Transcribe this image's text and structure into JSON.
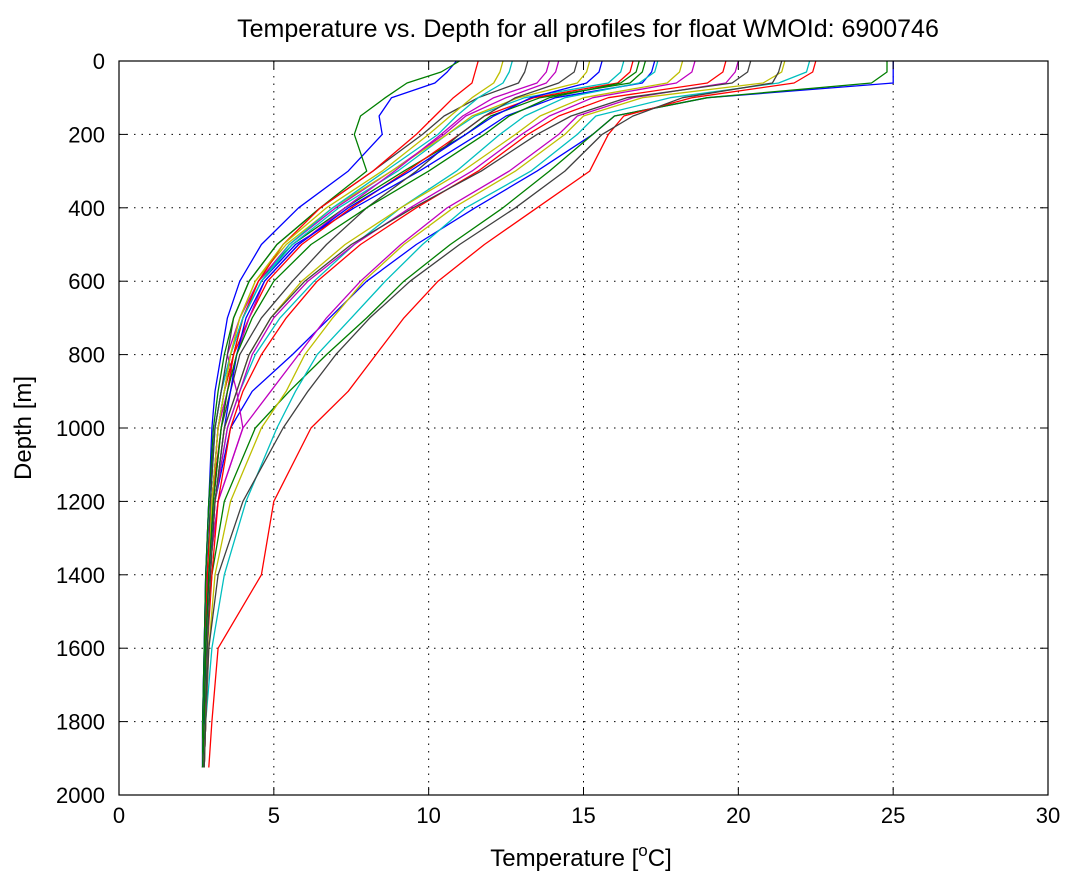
{
  "chart_data": {
    "type": "line",
    "title": "Temperature vs. Depth for all profiles for float WMOId: 6900746",
    "xlabel": "Temperature [°C]",
    "xlabel_main": "Temperature [",
    "xlabel_sup": "o",
    "xlabel_end": "C]",
    "ylabel": "Depth [m]",
    "xlim": [
      0,
      30
    ],
    "ylim": [
      0,
      2000
    ],
    "y_reversed": true,
    "grid": true,
    "xticks": [
      0,
      5,
      10,
      15,
      20,
      25,
      30
    ],
    "yticks": [
      0,
      200,
      400,
      600,
      800,
      1000,
      1200,
      1400,
      1600,
      1800,
      2000
    ],
    "depth_levels": [
      0,
      30,
      60,
      100,
      150,
      200,
      300,
      400,
      500,
      600,
      700,
      800,
      900,
      1000,
      1200,
      1400,
      1600,
      1800,
      1925
    ],
    "series": [
      {
        "color": "#0000ff",
        "depth": [
          0,
          30,
          60,
          100,
          150,
          200,
          300,
          400,
          500,
          600,
          700,
          800,
          900,
          1000,
          1200,
          1400,
          1600,
          1800,
          1925
        ],
        "temp": [
          25,
          25,
          25,
          19,
          16,
          15.3,
          13.5,
          11.5,
          9.6,
          8,
          6.8,
          5.6,
          4.3,
          3.6,
          3.1,
          2.9,
          2.8,
          2.7,
          2.7
        ]
      },
      {
        "color": "#007f00",
        "depth": [
          0,
          30,
          60,
          100,
          150,
          200,
          300,
          400,
          500,
          600,
          700,
          800,
          900,
          1000,
          1200,
          1400,
          1600,
          1800,
          1925
        ],
        "temp": [
          24.8,
          24.8,
          24.3,
          19,
          16,
          15.3,
          13.9,
          12.4,
          10.7,
          9.2,
          8,
          6.7,
          5.5,
          4.4,
          3.4,
          3,
          2.8,
          2.75,
          2.7
        ]
      },
      {
        "color": "#ff0000",
        "depth": [
          0,
          30,
          60,
          100,
          150,
          200,
          300,
          400,
          500,
          600,
          700,
          800,
          900,
          1000,
          1200,
          1400,
          1600,
          1800,
          1925
        ],
        "temp": [
          22.5,
          22.4,
          21.8,
          18.5,
          16.3,
          15.8,
          15.2,
          13.5,
          11.8,
          10.3,
          9.2,
          8.3,
          7.4,
          6.2,
          5,
          4.6,
          3.2,
          3,
          2.9
        ]
      },
      {
        "color": "#00bfbf",
        "depth": [
          0,
          30,
          60,
          100,
          150,
          200,
          300,
          400,
          500,
          600,
          700,
          800,
          900,
          1000,
          1200,
          1400,
          1600,
          1800,
          1925
        ],
        "temp": [
          22.3,
          22.2,
          21.3,
          17.8,
          15.4,
          14.8,
          13.3,
          11.2,
          9.8,
          8.6,
          7.5,
          6.4,
          5.7,
          5.1,
          4.1,
          3.4,
          3,
          2.8,
          2.75
        ]
      },
      {
        "color": "#bf00bf",
        "depth": [
          0,
          30,
          60,
          100,
          150,
          200,
          300,
          400,
          500,
          600,
          700,
          800,
          900,
          1000,
          1200,
          1400,
          1600,
          1800,
          1925
        ],
        "temp": [
          20,
          19.9,
          19.6,
          16.6,
          14.8,
          14.2,
          12.6,
          10.6,
          9.1,
          7.8,
          6.7,
          5.8,
          4.9,
          4,
          3.2,
          2.9,
          2.8,
          2.7,
          2.7
        ]
      },
      {
        "color": "#bfbf00",
        "depth": [
          0,
          30,
          60,
          100,
          150,
          200,
          300,
          400,
          500,
          600,
          700,
          800,
          900,
          1000,
          1200,
          1400,
          1600,
          1800,
          1925
        ],
        "temp": [
          21.5,
          21.4,
          20.8,
          16.9,
          15,
          14.4,
          12.8,
          10.8,
          9.2,
          7.9,
          6.9,
          6,
          5.4,
          4.6,
          3.6,
          3.1,
          2.9,
          2.8,
          2.75
        ]
      },
      {
        "color": "#404040",
        "depth": [
          0,
          30,
          60,
          100,
          150,
          200,
          300,
          400,
          500,
          600,
          700,
          800,
          900,
          1000,
          1200,
          1400,
          1600,
          1800,
          1925
        ],
        "temp": [
          21.4,
          21.3,
          21.1,
          18.2,
          16.6,
          15.6,
          14.4,
          12.8,
          11,
          9.4,
          8.1,
          7,
          6.1,
          5.3,
          4,
          3.2,
          2.9,
          2.8,
          2.75
        ]
      },
      {
        "color": "#0000ff",
        "depth": [
          0,
          30,
          60,
          100,
          150,
          200,
          300,
          400,
          500,
          600,
          700,
          800,
          900,
          1000,
          1200,
          1400,
          1600,
          1800,
          1925
        ],
        "temp": [
          17.3,
          17.2,
          16.9,
          14.1,
          12.5,
          11.6,
          9.7,
          7.6,
          5.7,
          4.6,
          4,
          3.6,
          3.3,
          3.1,
          2.9,
          2.8,
          2.75,
          2.7,
          2.7
        ]
      },
      {
        "color": "#007f00",
        "depth": [
          0,
          30,
          60,
          100,
          150,
          200,
          300,
          400,
          500,
          600,
          700,
          800,
          900,
          1000,
          1200,
          1400,
          1600,
          1800,
          1925
        ],
        "temp": [
          17,
          16.9,
          16.5,
          13.6,
          12,
          11.2,
          9.2,
          7.3,
          5.6,
          4.5,
          4,
          3.7,
          3.4,
          3.2,
          3,
          2.85,
          2.8,
          2.75,
          2.7
        ]
      },
      {
        "color": "#ff0000",
        "depth": [
          0,
          30,
          60,
          100,
          150,
          200,
          300,
          400,
          500,
          600,
          700,
          800,
          900,
          1000,
          1200,
          1400,
          1600,
          1800,
          1925
        ],
        "temp": [
          16.6,
          16.5,
          16.1,
          13.4,
          11.8,
          11,
          9.3,
          7.5,
          5.9,
          4.8,
          4.2,
          3.7,
          3.4,
          3.2,
          3,
          2.9,
          2.8,
          2.75,
          2.7
        ]
      },
      {
        "color": "#00bfbf",
        "depth": [
          0,
          30,
          60,
          100,
          150,
          200,
          300,
          400,
          500,
          600,
          700,
          800,
          900,
          1000,
          1200,
          1400,
          1600,
          1800,
          1925
        ],
        "temp": [
          16.3,
          16.2,
          15.8,
          13.1,
          11.5,
          10.6,
          9,
          7.1,
          5.6,
          4.6,
          4,
          3.6,
          3.3,
          3.1,
          2.95,
          2.85,
          2.8,
          2.75,
          2.7
        ]
      },
      {
        "color": "#bf00bf",
        "depth": [
          0,
          30,
          60,
          100,
          150,
          200,
          300,
          400,
          500,
          600,
          700,
          800,
          900,
          1000,
          1200,
          1400,
          1600,
          1800,
          1925
        ],
        "temp": [
          14.2,
          14.1,
          13.8,
          12.5,
          11.2,
          10.5,
          8.8,
          7,
          5.5,
          4.5,
          3.9,
          3.5,
          3.8,
          4,
          3.2,
          2.9,
          2.8,
          2.75,
          2.7
        ]
      },
      {
        "color": "#bfbf00",
        "depth": [
          0,
          30,
          60,
          100,
          150,
          200,
          300,
          400,
          500,
          600,
          700,
          800,
          900,
          1000,
          1200,
          1400,
          1600,
          1800,
          1925
        ],
        "temp": [
          15.2,
          15.1,
          14.8,
          12.9,
          11.4,
          10.6,
          8.8,
          6.9,
          5.4,
          4.4,
          3.9,
          3.6,
          3.4,
          3.2,
          3,
          2.9,
          2.8,
          2.75,
          2.7
        ]
      },
      {
        "color": "#404040",
        "depth": [
          0,
          30,
          60,
          100,
          150,
          200,
          300,
          400,
          500,
          600,
          700,
          800,
          900,
          1000,
          1200,
          1400,
          1600,
          1800,
          1925
        ],
        "temp": [
          13.2,
          13.1,
          12.9,
          11.6,
          10.5,
          9.8,
          8.2,
          6.5,
          5.1,
          4.2,
          3.7,
          3.5,
          3.3,
          3.1,
          2.95,
          2.85,
          2.8,
          2.75,
          2.7
        ]
      },
      {
        "color": "#0000ff",
        "depth": [
          0,
          30,
          60,
          100,
          150,
          200,
          300,
          400,
          500,
          600,
          700,
          800,
          900,
          1000,
          1200,
          1400,
          1600,
          1800,
          1925
        ],
        "temp": [
          10.9,
          10.6,
          10.2,
          8.8,
          8.4,
          8.5,
          7.4,
          5.8,
          4.6,
          3.9,
          3.5,
          3.3,
          3.1,
          3,
          2.9,
          2.8,
          2.75,
          2.7,
          2.7
        ]
      },
      {
        "color": "#007f00",
        "depth": [
          0,
          30,
          60,
          100,
          150,
          200,
          300,
          400,
          500,
          600,
          700,
          800,
          900,
          1000,
          1200,
          1400,
          1600,
          1800,
          1925
        ],
        "temp": [
          11,
          10.4,
          9.3,
          8.6,
          7.8,
          7.6,
          8,
          6.5,
          5.1,
          4.2,
          3.7,
          3.4,
          3.2,
          3.05,
          2.9,
          2.8,
          2.75,
          2.7,
          2.7
        ]
      },
      {
        "color": "#ff0000",
        "depth": [
          0,
          30,
          60,
          100,
          150,
          200,
          300,
          400,
          500,
          600,
          700,
          800,
          900,
          1000,
          1200,
          1400,
          1600,
          1800,
          1925
        ],
        "temp": [
          11.6,
          11.5,
          11.4,
          10.8,
          10.2,
          9.6,
          8.2,
          6.5,
          5.3,
          4.5,
          4,
          3.7,
          3.5,
          3.3,
          3,
          2.85,
          2.8,
          2.75,
          2.7
        ]
      },
      {
        "color": "#00bfbf",
        "depth": [
          0,
          30,
          60,
          100,
          150,
          200,
          300,
          400,
          500,
          600,
          700,
          800,
          900,
          1000,
          1200,
          1400,
          1600,
          1800,
          1925
        ],
        "temp": [
          12.7,
          12.6,
          12.4,
          11.6,
          10.9,
          10.3,
          8.6,
          6.9,
          5.5,
          4.6,
          4,
          3.6,
          3.4,
          3.2,
          3,
          2.9,
          2.8,
          2.75,
          2.7
        ]
      },
      {
        "color": "#bf00bf",
        "depth": [
          0,
          30,
          60,
          100,
          150,
          200,
          300,
          400,
          500,
          600,
          700,
          800,
          900,
          1000,
          1200,
          1400,
          1600,
          1800,
          1925
        ],
        "temp": [
          13.9,
          13.8,
          13.5,
          12.1,
          11.1,
          10.4,
          8.9,
          7.3,
          5.8,
          4.7,
          4.2,
          3.8,
          3.5,
          3.2,
          3,
          2.9,
          2.8,
          2.75,
          2.7
        ]
      },
      {
        "color": "#bfbf00",
        "depth": [
          0,
          30,
          60,
          100,
          150,
          200,
          300,
          400,
          500,
          600,
          700,
          800,
          900,
          1000,
          1200,
          1400,
          1600,
          1800,
          1925
        ],
        "temp": [
          12.4,
          12.3,
          12.1,
          11.4,
          10.7,
          10,
          8.5,
          6.7,
          5.3,
          4.4,
          3.9,
          3.6,
          3.4,
          3.2,
          3,
          2.9,
          2.8,
          2.75,
          2.7
        ]
      },
      {
        "color": "#404040",
        "depth": [
          0,
          30,
          60,
          100,
          150,
          200,
          300,
          400,
          500,
          600,
          700,
          800,
          900,
          1000,
          1200,
          1400,
          1600,
          1800,
          1925
        ],
        "temp": [
          14.8,
          14.7,
          14.2,
          12.8,
          11.8,
          11,
          9.6,
          8,
          6.7,
          5.6,
          4.6,
          3.9,
          3.6,
          3.3,
          3.05,
          2.9,
          2.8,
          2.75,
          2.7
        ]
      },
      {
        "color": "#0000ff",
        "depth": [
          0,
          30,
          60,
          100,
          150,
          200,
          300,
          400,
          500,
          600,
          700,
          800,
          900,
          1000,
          1200,
          1400,
          1600,
          1800,
          1925
        ],
        "temp": [
          15.6,
          15.5,
          15.1,
          13.3,
          12.1,
          11.2,
          9.4,
          7.4,
          5.8,
          4.7,
          4.1,
          3.8,
          3.6,
          3.4,
          3.1,
          2.9,
          2.8,
          2.75,
          2.7
        ]
      },
      {
        "color": "#007f00",
        "depth": [
          0,
          30,
          60,
          100,
          150,
          200,
          300,
          400,
          500,
          600,
          700,
          800,
          900,
          1000,
          1200,
          1400,
          1600,
          1800,
          1925
        ],
        "temp": [
          16.8,
          16.7,
          16.2,
          13.9,
          12.6,
          11.8,
          10,
          8,
          6.2,
          5,
          4.3,
          3.8,
          3.5,
          3.3,
          3.05,
          2.9,
          2.8,
          2.75,
          2.7
        ]
      },
      {
        "color": "#ff0000",
        "depth": [
          0,
          30,
          60,
          100,
          150,
          200,
          300,
          400,
          500,
          600,
          700,
          800,
          900,
          1000,
          1200,
          1400,
          1600,
          1800,
          1925
        ],
        "temp": [
          19.6,
          19.5,
          19,
          15.8,
          14.2,
          13.2,
          11.6,
          9.6,
          7.8,
          6.4,
          5.4,
          4.6,
          4,
          3.6,
          3.2,
          3,
          2.85,
          2.8,
          2.75
        ]
      },
      {
        "color": "#00bfbf",
        "depth": [
          0,
          30,
          60,
          100,
          150,
          200,
          300,
          400,
          500,
          600,
          700,
          800,
          900,
          1000,
          1200,
          1400,
          1600,
          1800,
          1925
        ],
        "temp": [
          17.4,
          17.3,
          16.8,
          14.4,
          13.1,
          12.3,
          10.9,
          9.1,
          7.6,
          6.3,
          5.2,
          4.4,
          3.9,
          3.5,
          3.1,
          2.95,
          2.85,
          2.8,
          2.75
        ]
      },
      {
        "color": "#bf00bf",
        "depth": [
          0,
          30,
          60,
          100,
          150,
          200,
          300,
          400,
          500,
          600,
          700,
          800,
          900,
          1000,
          1200,
          1400,
          1600,
          1800,
          1925
        ],
        "temp": [
          18.6,
          18.5,
          18,
          15.3,
          13.9,
          13,
          11.4,
          9.4,
          7.6,
          6.1,
          5,
          4.3,
          3.9,
          3.5,
          3.1,
          2.95,
          2.85,
          2.8,
          2.75
        ]
      },
      {
        "color": "#bfbf00",
        "depth": [
          0,
          30,
          60,
          100,
          150,
          200,
          300,
          400,
          500,
          600,
          700,
          800,
          900,
          1000,
          1200,
          1400,
          1600,
          1800,
          1925
        ],
        "temp": [
          18.2,
          18.1,
          17.7,
          15,
          13.6,
          12.8,
          11.1,
          9.1,
          7.3,
          5.9,
          4.9,
          4.2,
          3.8,
          3.4,
          3.1,
          2.95,
          2.85,
          2.8,
          2.75
        ]
      },
      {
        "color": "#404040",
        "depth": [
          0,
          30,
          60,
          100,
          150,
          200,
          300,
          400,
          500,
          600,
          700,
          800,
          900,
          1000,
          1200,
          1400,
          1600,
          1800,
          1925
        ],
        "temp": [
          20.4,
          20.3,
          19.8,
          16.4,
          14.6,
          13.5,
          11.7,
          9.5,
          7.5,
          6,
          4.9,
          4.2,
          3.8,
          3.4,
          3.1,
          2.95,
          2.85,
          2.8,
          2.75
        ]
      }
    ]
  }
}
